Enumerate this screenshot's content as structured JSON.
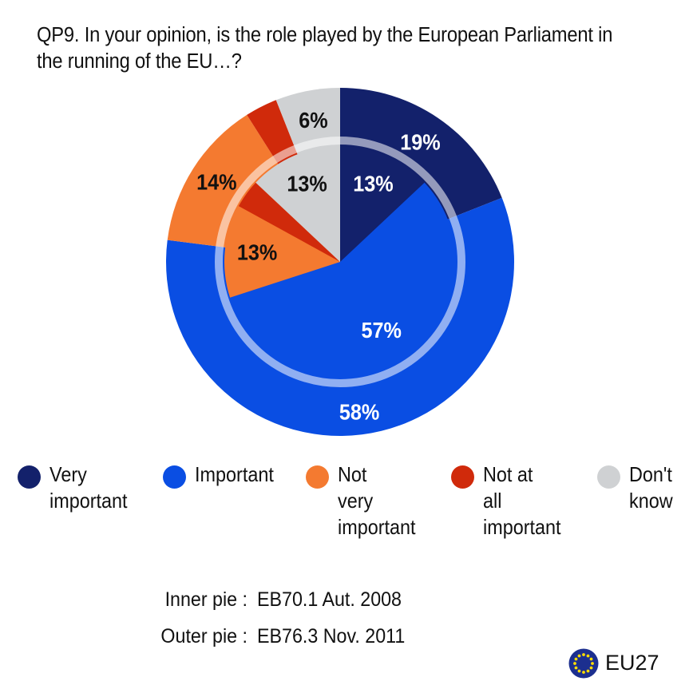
{
  "title_lines": [
    "QP9. In your opinion, is the role played by the European Parliament in",
    "the running of the EU…?"
  ],
  "chart_data": {
    "type": "pie",
    "categories": [
      "Very important",
      "Important",
      "Not very important",
      "Not at all important",
      "Don't know"
    ],
    "colors": [
      "#13216b",
      "#0a4ee3",
      "#f47a30",
      "#d02a0b",
      "#cfd1d3"
    ],
    "series": [
      {
        "name": "Inner pie",
        "values": [
          13,
          57,
          13,
          4,
          13
        ],
        "labels": [
          "13%",
          "57%",
          "13%",
          "",
          "13%"
        ]
      },
      {
        "name": "Outer pie",
        "values": [
          19,
          58,
          14,
          3,
          6
        ],
        "labels": [
          "19%",
          "58%",
          "14%",
          "",
          "6%"
        ]
      }
    ],
    "label_colors": [
      "#ffffff",
      "#ffffff",
      "#111111",
      "#ffffff",
      "#111111"
    ]
  },
  "legend": [
    {
      "label": "Very\nimportant",
      "color": "#13216b"
    },
    {
      "label": "Important",
      "color": "#0a4ee3"
    },
    {
      "label": "Not\nvery\nimportant",
      "color": "#f47a30"
    },
    {
      "label": "Not at\nall\nimportant",
      "color": "#d02a0b"
    },
    {
      "label": "Don't\nknow",
      "color": "#cfd1d3"
    }
  ],
  "footer": {
    "inner_label": "Inner pie :",
    "inner_value": "EB70.1 Aut. 2008",
    "outer_label": "Outer pie :",
    "outer_value": "EB76.3 Nov. 2011"
  },
  "badge": {
    "text": "EU27",
    "icon": "eu-flag-icon",
    "flag_color": "#1c2f8f",
    "star_color": "#ffdd00"
  }
}
